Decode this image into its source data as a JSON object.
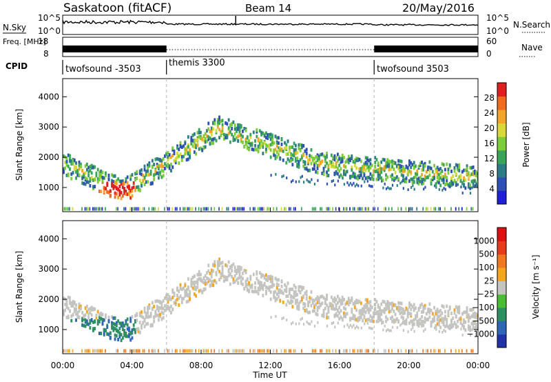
{
  "header": {
    "station": "Saskatoon (fitACF)",
    "beam": "Beam 14",
    "date": "20/May/2016"
  },
  "colors": {
    "panel_bg": "#ffffff",
    "noise_gray": "#c4c4c0",
    "ground_scatter_gray": "#c8c8c4",
    "divider": "#b4b4b4"
  },
  "chart_data": [
    {
      "type": "line",
      "panel": "noise",
      "left_label": "N.Sky",
      "right_label": "N.Search",
      "left_ticks": [
        "10^5",
        "10^0"
      ],
      "right_ticks": [
        "10^5",
        "10^0"
      ]
    },
    {
      "type": "line",
      "panel": "frequency",
      "left_label": "Freq. [MHz]",
      "right_label": "Nave",
      "left_ticks": [
        "18",
        "8"
      ],
      "right_ticks": [
        "60",
        "0"
      ]
    },
    {
      "type": "table",
      "panel": "cpid",
      "label": "CPID",
      "segments": [
        {
          "name": "twofsound -3503",
          "start_h": 0,
          "end_h": 6.0
        },
        {
          "name": "themis 3300",
          "start_h": 6.0,
          "end_h": 18.0
        },
        {
          "name": "twofsound 3503",
          "start_h": 18.0,
          "end_h": 24.0
        }
      ]
    },
    {
      "type": "heatmap",
      "panel": "power",
      "ylabel": "Slant Range [km]",
      "yticks": [
        1000,
        2000,
        3000,
        4000
      ],
      "ylim": [
        200,
        4600
      ],
      "xlim": [
        0,
        24
      ],
      "colorbar": {
        "label": "Power [dB]",
        "ticks": [
          "28",
          "24",
          "20",
          "16",
          "12",
          "8",
          "4"
        ],
        "colors": [
          "#1f1fd8",
          "#2e4fb6",
          "#2f7c86",
          "#3aa55a",
          "#7dcc3a",
          "#d8d83a",
          "#f2a52a",
          "#f06a20",
          "#e02020"
        ]
      }
    },
    {
      "type": "heatmap",
      "panel": "velocity",
      "ylabel": "Slant Range [km]",
      "yticks": [
        1000,
        2000,
        3000,
        4000
      ],
      "ylim": [
        200,
        4600
      ],
      "xlim": [
        0,
        24
      ],
      "xticks": [
        "00:00",
        "04:00",
        "08:00",
        "12:00",
        "16:00",
        "20:00",
        "00:00"
      ],
      "xlabel": "Time UT",
      "colorbar": {
        "label": "Velocity [m s⁻¹]",
        "ticks": [
          "1000",
          "500",
          "100",
          "25",
          "−25",
          "−100",
          "−500",
          "−1000"
        ],
        "colors": [
          "#2233aa",
          "#2f66b8",
          "#2e8f62",
          "#4cbc34",
          "#c4c4c0",
          "#f4a61c",
          "#f07820",
          "#e43c1c",
          "#dd1111"
        ]
      }
    }
  ]
}
